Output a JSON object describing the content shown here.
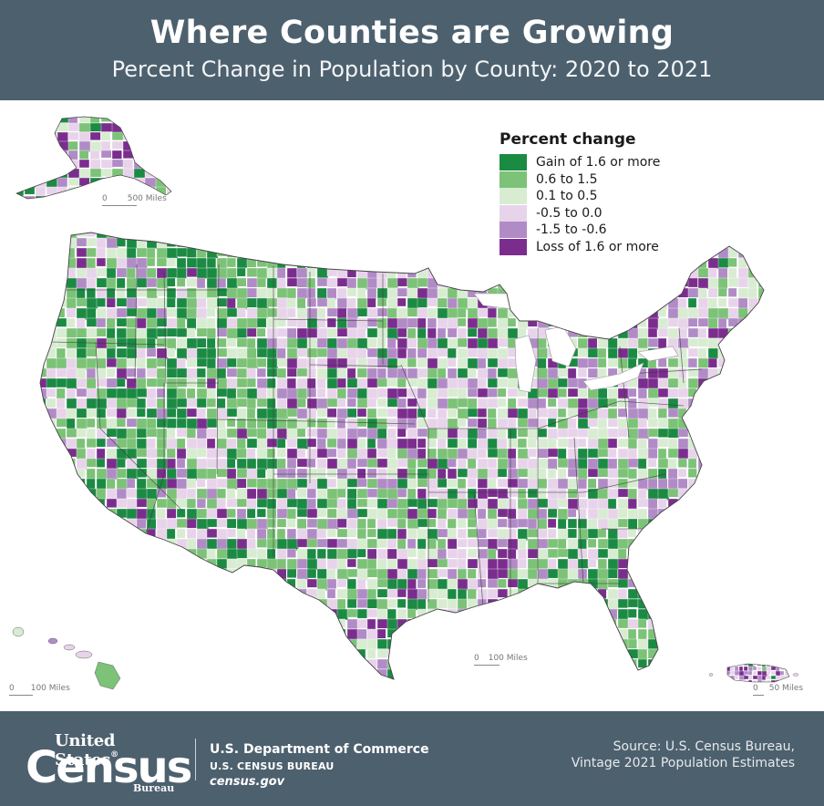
{
  "header": {
    "title": "Where Counties are Growing",
    "subtitle": "Percent Change in Population by County: 2020 to 2021"
  },
  "legend": {
    "title": "Percent change",
    "items": [
      {
        "label": "Gain of 1.6 or more",
        "color": "#1b8a43"
      },
      {
        "label": "0.6 to 1.5",
        "color": "#7cc277"
      },
      {
        "label": "0.1 to 0.5",
        "color": "#d8ecd2"
      },
      {
        "label": "-0.5 to 0.0",
        "color": "#e8d4ea"
      },
      {
        "label": "-1.5 to -0.6",
        "color": "#b18bc6"
      },
      {
        "label": "Loss of 1.6 or more",
        "color": "#7b2d8e"
      }
    ]
  },
  "scalebars": {
    "alaska": {
      "zero": "0",
      "label": "500 Miles"
    },
    "conus": {
      "zero": "0",
      "label": "100 Miles"
    },
    "hawaii": {
      "zero": "0",
      "label": "100 Miles"
    },
    "puerto_rico": {
      "zero": "0",
      "label": "50 Miles"
    }
  },
  "footer": {
    "logo_line1": "United States",
    "logo_reg": "®",
    "logo_line2": "Census",
    "logo_line3": "Bureau",
    "dept_name": "U.S. Department of Commerce",
    "bureau_name": "U.S. CENSUS BUREAU",
    "website": "census.gov",
    "source_line1": "Source: U.S. Census Bureau,",
    "source_line2": "Vintage 2021 Population Estimates"
  },
  "colors": {
    "header_bg": "#4d606e",
    "footer_bg": "#4d606e",
    "gain_high": "#1b8a43",
    "gain_mid": "#7cc277",
    "gain_low": "#d8ecd2",
    "loss_low": "#e8d4ea",
    "loss_mid": "#b18bc6",
    "loss_high": "#7b2d8e"
  }
}
